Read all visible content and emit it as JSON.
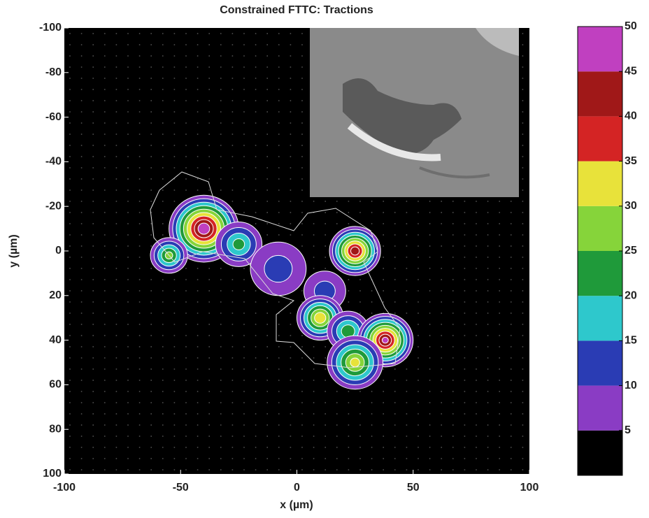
{
  "chart_data": {
    "type": "contour",
    "title": "Constrained FTTC: Tractions",
    "xlabel": "x (µm)",
    "ylabel": "y (µm)",
    "xlim": [
      -100,
      100
    ],
    "xticks": [
      -100,
      -50,
      0,
      50,
      100
    ],
    "ylim": [
      -100,
      100
    ],
    "yticks": [
      -100,
      -80,
      -60,
      -40,
      -20,
      0,
      20,
      40,
      60,
      80,
      100
    ],
    "y_direction": "reverse",
    "colorbar": {
      "clim": [
        0,
        50
      ],
      "ticks": [
        5,
        10,
        15,
        20,
        25,
        30,
        35,
        40,
        45,
        50
      ],
      "colormap": [
        "#000000",
        "#8a3cc4",
        "#2a3cb4",
        "#2ec8cc",
        "#1f9a3a",
        "#86d43a",
        "#e8e23a",
        "#d42424",
        "#a01818",
        "#c040c0"
      ]
    },
    "regions": [
      {
        "x": -40,
        "y": -10,
        "peak": 48,
        "r": 15
      },
      {
        "x": -25,
        "y": -3,
        "peak": 20,
        "r": 10
      },
      {
        "x": -55,
        "y": 2,
        "peak": 25,
        "r": 8
      },
      {
        "x": -8,
        "y": 8,
        "peak": 10,
        "r": 12
      },
      {
        "x": 25,
        "y": 0,
        "peak": 42,
        "r": 11
      },
      {
        "x": 12,
        "y": 18,
        "peak": 10,
        "r": 9
      },
      {
        "x": 10,
        "y": 30,
        "peak": 33,
        "r": 10
      },
      {
        "x": 22,
        "y": 36,
        "peak": 22,
        "r": 9
      },
      {
        "x": 38,
        "y": 40,
        "peak": 45,
        "r": 12
      },
      {
        "x": 25,
        "y": 50,
        "peak": 30,
        "r": 12
      }
    ]
  }
}
